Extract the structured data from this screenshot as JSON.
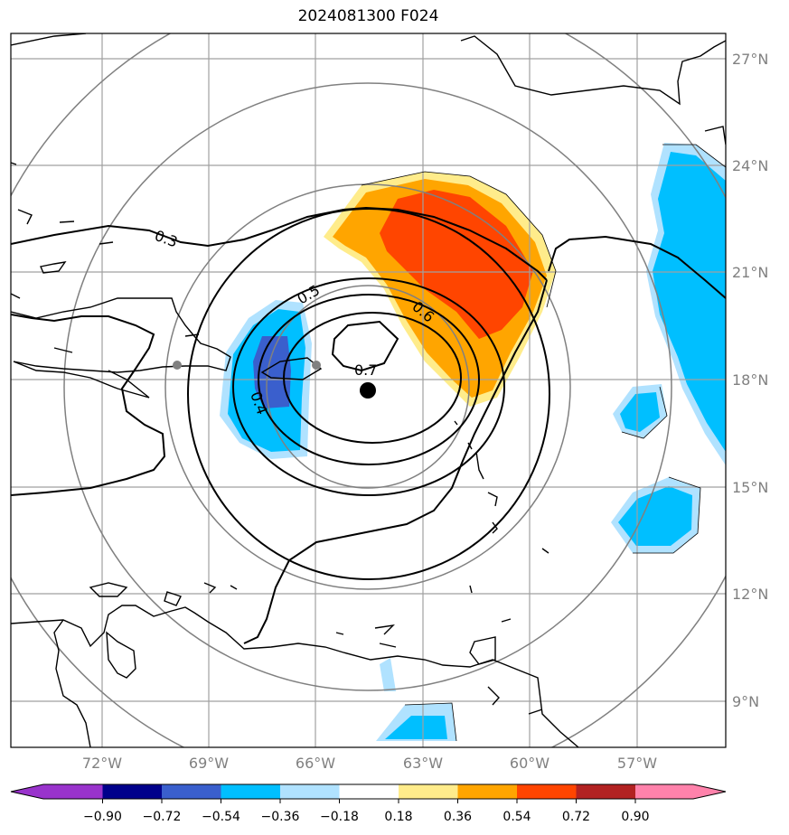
{
  "title": "2024081300 F024",
  "lat_labels": [
    "27°N",
    "24°N",
    "21°N",
    "18°N",
    "15°N",
    "12°N",
    "9°N"
  ],
  "lon_labels": [
    "72°W",
    "69°W",
    "66°W",
    "63°W",
    "60°W",
    "57°W"
  ],
  "contour_labels": [
    "0.3",
    "0.4",
    "0.5",
    "0.6",
    "0.7"
  ],
  "colorbar": {
    "tick_labels": [
      "−0.90",
      "−0.72",
      "−0.54",
      "−0.36",
      "−0.18",
      "0.18",
      "0.36",
      "0.54",
      "0.72",
      "0.90"
    ],
    "colors": [
      "#9933cc",
      "#00008b",
      "#3a5fcd",
      "#00bfff",
      "#b0e2ff",
      "#ffffff",
      "#ffec8b",
      "#ffa500",
      "#ff4500",
      "#b22222",
      "#ff82ab"
    ]
  },
  "colors": {
    "grid": "#a0a0a0",
    "range_rings": "#808080",
    "contour": "#000000",
    "coast": "#000000"
  }
}
